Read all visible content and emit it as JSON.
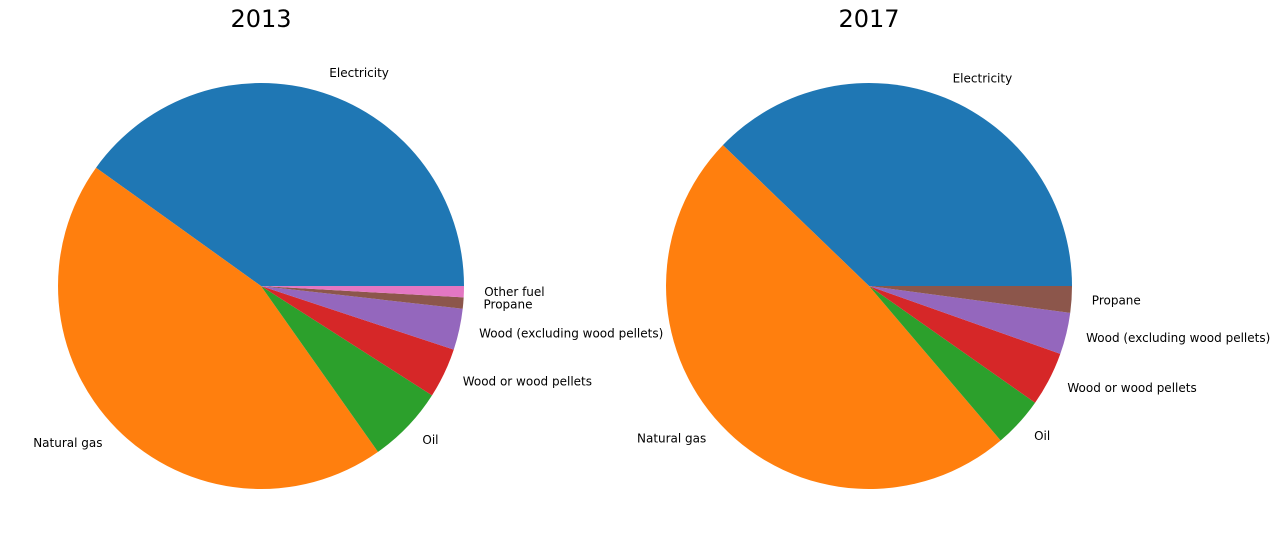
{
  "chart_data": [
    {
      "type": "pie",
      "title": "2013",
      "start_angle_deg": 0,
      "direction": "counterclockwise",
      "slices": [
        {
          "label": "Electricity",
          "value": 40.3,
          "color": "#1f77b4"
        },
        {
          "label": "Natural gas",
          "value": 44.9,
          "color": "#ff7f0e"
        },
        {
          "label": "Oil",
          "value": 6.2,
          "color": "#2ca02c"
        },
        {
          "label": "Wood or wood pellets",
          "value": 4.0,
          "color": "#d62728"
        },
        {
          "label": "Wood (excluding wood pellets)",
          "value": 3.3,
          "color": "#9467bd"
        },
        {
          "label": "Propane",
          "value": 0.9,
          "color": "#8c564b"
        },
        {
          "label": "Other fuel",
          "value": 0.9,
          "color": "#e377c2"
        }
      ]
    },
    {
      "type": "pie",
      "title": "2017",
      "start_angle_deg": 0,
      "direction": "counterclockwise",
      "slices": [
        {
          "label": "Electricity",
          "value": 37.6,
          "color": "#1f77b4"
        },
        {
          "label": "Natural gas",
          "value": 48.2,
          "color": "#ff7f0e"
        },
        {
          "label": "Oil",
          "value": 4.0,
          "color": "#2ca02c"
        },
        {
          "label": "Wood or wood pellets",
          "value": 4.3,
          "color": "#d62728"
        },
        {
          "label": "Wood (excluding wood pellets)",
          "value": 3.3,
          "color": "#9467bd"
        },
        {
          "label": "Propane",
          "value": 2.1,
          "color": "#8c564b"
        }
      ]
    }
  ]
}
